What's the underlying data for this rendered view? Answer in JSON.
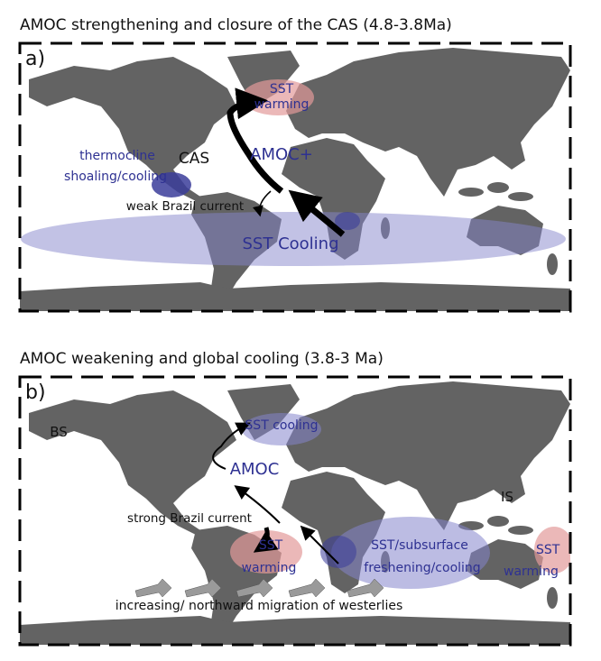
{
  "panels": [
    {
      "title": "AMOC strengthening and closure of the CAS (4.8-3.8Ma)",
      "label": "a)",
      "annotations": [
        [
          "SST",
          "warming"
        ],
        [
          "thermocline",
          "shoaling/cooling"
        ],
        [
          "CAS"
        ],
        [
          "AMOC+"
        ],
        [
          "weak Brazil current"
        ],
        [
          "SST Cooling"
        ]
      ]
    },
    {
      "title": "AMOC weakening and global cooling  (3.8-3 Ma)",
      "label": "b)",
      "annotations": [
        [
          "BS"
        ],
        [
          "SST cooling"
        ],
        [
          "AMOC"
        ],
        [
          "IS"
        ],
        [
          "strong Brazil current"
        ],
        [
          "SST",
          "warming"
        ],
        [
          "SST/subsurface",
          "freshening/cooling"
        ],
        [
          "SST",
          "warming"
        ],
        [
          "increasing/ northward migration of  westerlies"
        ]
      ]
    }
  ]
}
